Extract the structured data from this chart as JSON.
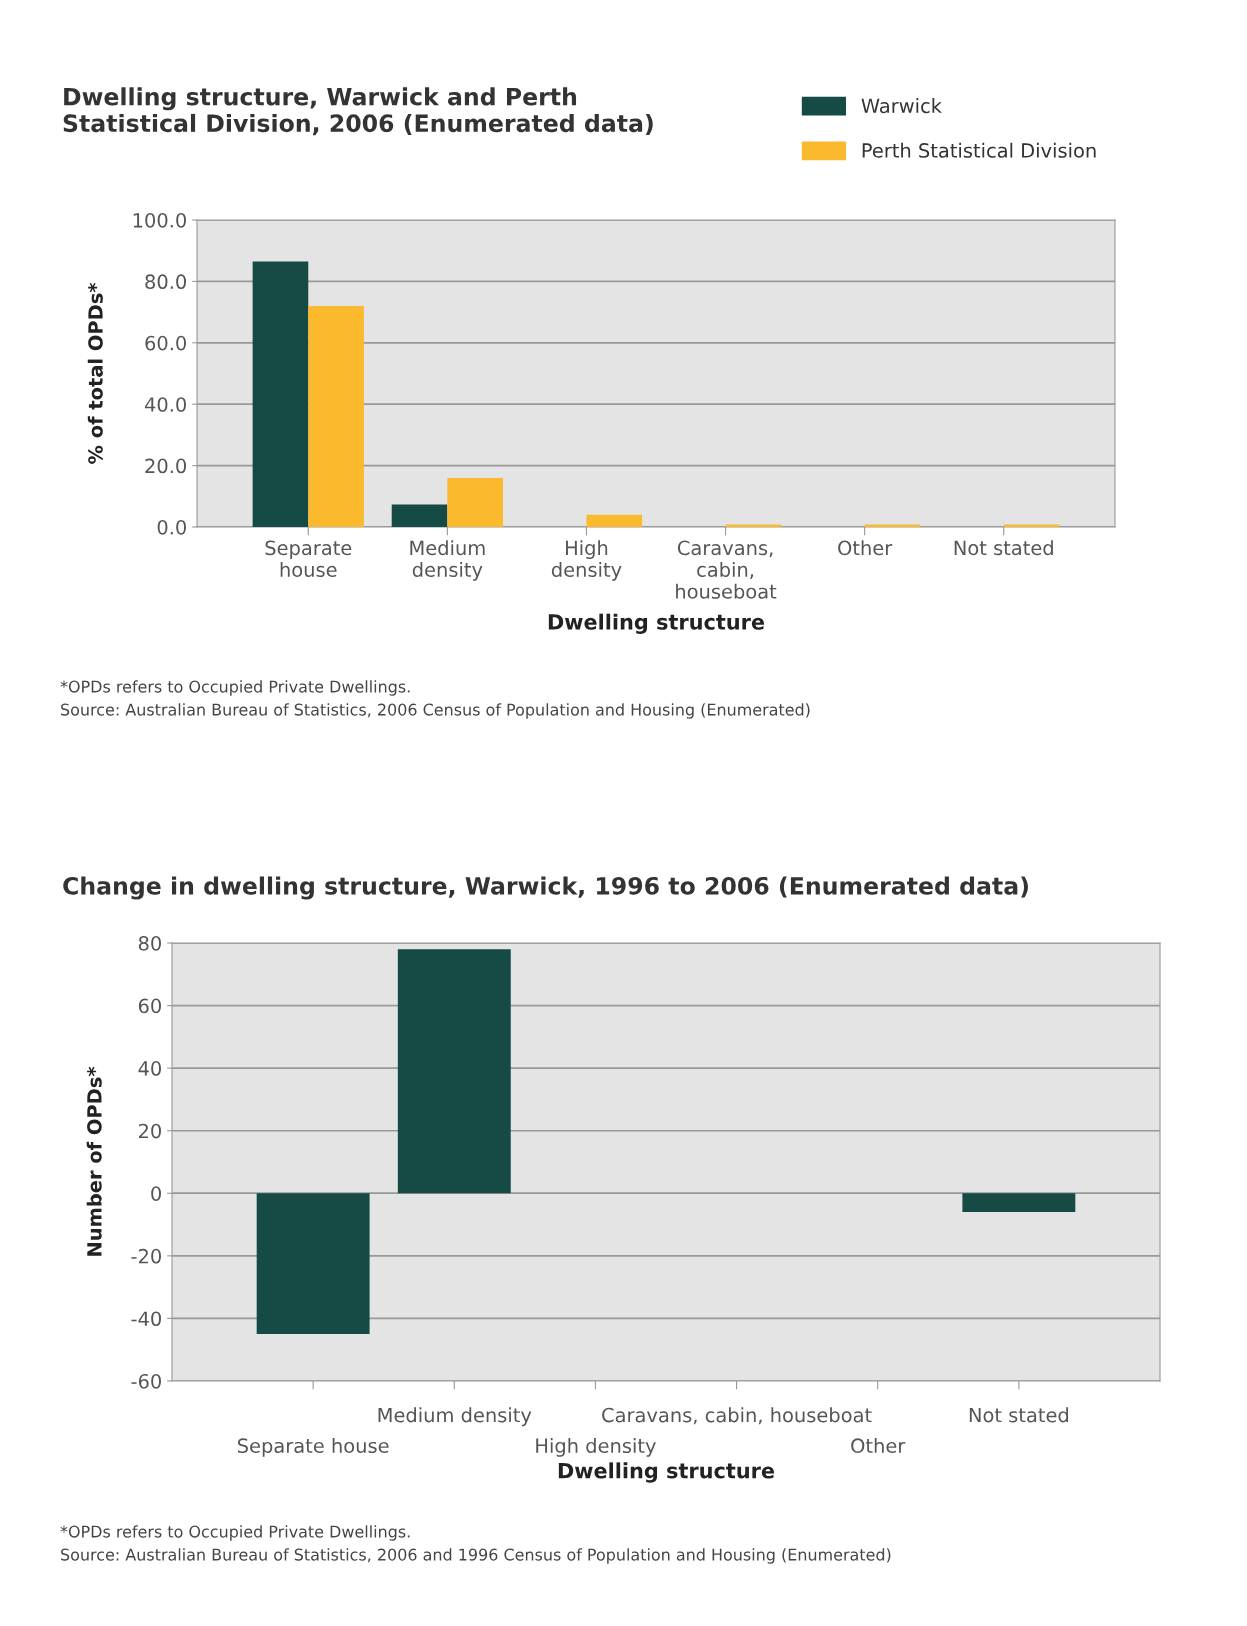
{
  "chart_data": [
    {
      "type": "bar",
      "title": "Dwelling structure, Warwick and Perth\nStatistical Division, 2006 (Enumerated data)",
      "xlabel": "Dwelling structure",
      "ylabel": "% of total OPDs*",
      "categories": [
        "Separate\nhouse",
        "Medium\ndensity",
        "High\ndensity",
        "Caravans,\ncabin,\nhouseboat",
        "Other",
        "Not stated"
      ],
      "series": [
        {
          "name": "Warwick",
          "color": "#154a45",
          "values": [
            86.5,
            7.3,
            0,
            0,
            0,
            0
          ]
        },
        {
          "name": "Perth Statistical Division",
          "color": "#fbb92d",
          "values": [
            72,
            16,
            4,
            0.8,
            0.8,
            0.8
          ]
        }
      ],
      "ylim": [
        0,
        100
      ],
      "yticks": [
        {
          "value": 0,
          "label": "0.0"
        },
        {
          "value": 20,
          "label": "20.0"
        },
        {
          "value": 40,
          "label": "40.0"
        },
        {
          "value": 60,
          "label": "60.0"
        },
        {
          "value": 80,
          "label": "80.0"
        },
        {
          "value": 100,
          "label": "100.0"
        }
      ],
      "grid": "y",
      "legend": "top right",
      "annotations": [
        "*OPDs refers to Occupied Private Dwellings.",
        "Source: Australian Bureau of Statistics, 2006 Census of Population and Housing (Enumerated)"
      ]
    },
    {
      "type": "bar",
      "title": "Change in dwelling structure, Warwick, 1996 to 2006 (Enumerated data)",
      "xlabel": "Dwelling structure",
      "ylabel": "Number of OPDs*",
      "categories": [
        "Separate house",
        "Medium density",
        "High density",
        "Caravans, cabin, houseboat",
        "Other",
        "Not stated"
      ],
      "series": [
        {
          "color": "#154a45",
          "values": [
            -45,
            78,
            0,
            0,
            0,
            -6
          ]
        }
      ],
      "ylim": [
        -60,
        80
      ],
      "yticks": [
        -60,
        -40,
        -20,
        0,
        20,
        40,
        60,
        80
      ],
      "grid": "y",
      "annotations": [
        "*OPDs refers to Occupied Private Dwellings.",
        "Source: Australian Bureau of Statistics, 2006 and 1996 Census of Population and Housing (Enumerated)"
      ]
    }
  ]
}
